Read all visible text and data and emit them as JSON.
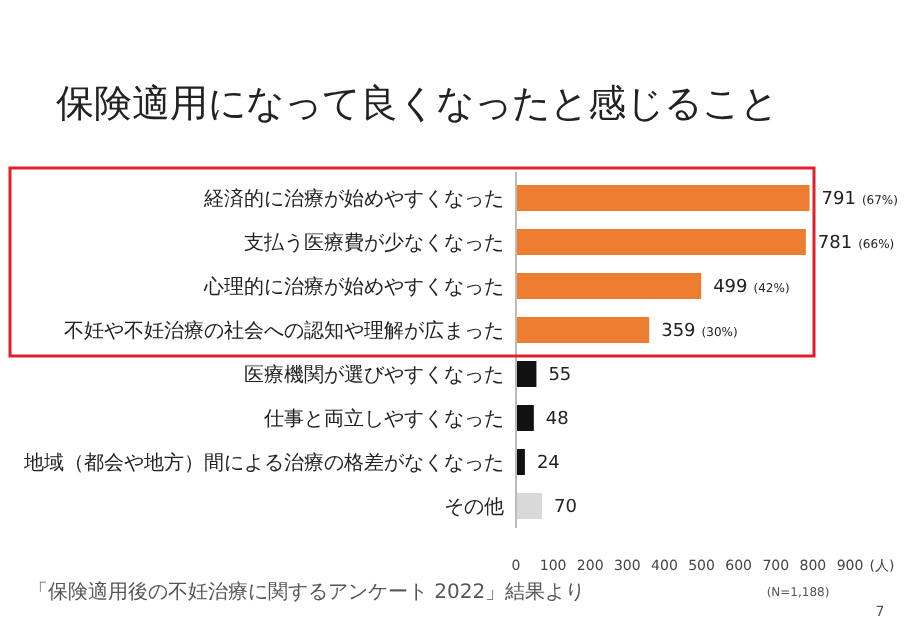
{
  "chart_data": {
    "type": "bar",
    "orientation": "horizontal",
    "title": "保険適用になって良くなったと感じること",
    "categories": [
      "経済的に治療が始めやすくなった",
      "支払う医療費が少なくなった",
      "心理的に治療が始めやすくなった",
      "不妊や不妊治療の社会への認知や理解が広まった",
      "医療機関が選びやすくなった",
      "仕事と両立しやすくなった",
      "地域（都会や地方）間による治療の格差がなくなった",
      "その他"
    ],
    "values": [
      791,
      781,
      499,
      359,
      55,
      48,
      24,
      70
    ],
    "colors": [
      "#ed7d31",
      "#ed7d31",
      "#ed7d31",
      "#ed7d31",
      "#111111",
      "#111111",
      "#111111",
      "#d9d9d9"
    ],
    "value_labels": [
      "791 (67%)",
      "781 (66%)",
      "499 (42%)",
      "359 (30%)",
      "55",
      "48",
      "24",
      "70"
    ],
    "xlim": [
      0,
      900
    ],
    "xticks": [
      0,
      100,
      200,
      300,
      400,
      500,
      600,
      700,
      800,
      900
    ],
    "xlabel": "(人)",
    "grid": false,
    "legend": false,
    "annotations": [
      "(N=1,188)",
      "「保険適用後の不妊治療に関するアンケート 2022」結果より",
      "7"
    ]
  }
}
